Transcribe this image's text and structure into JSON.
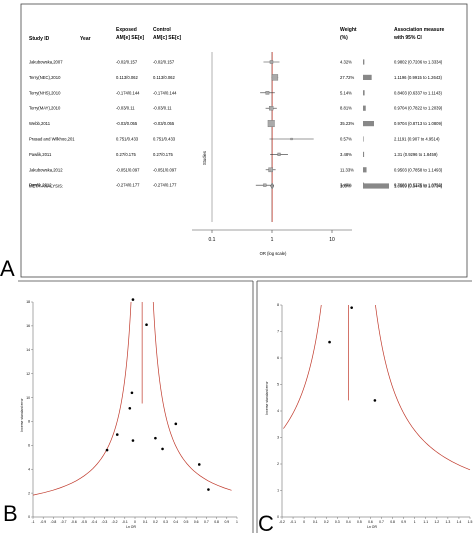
{
  "panels": {
    "a_label": "A",
    "b_label": "B",
    "c_label": "C"
  },
  "forest": {
    "col_headers": {
      "study": "Study ID",
      "year": "Year",
      "exposed_line1": "Exposed",
      "exposed_line2": "AM[e] SE[e]",
      "control_line1": "Control",
      "control_line2": "AM[c] SE[c]",
      "weight_line1": "Weight",
      "weight_line2": "(%)",
      "assoc_line1": "Association measure",
      "assoc_line2": "with 95% CI"
    },
    "studies_axis_label": "Studies",
    "x_axis_label": "OR (log scale)",
    "x_ticks": [
      {
        "value": 0.1,
        "label": "0.1"
      },
      {
        "value": 1,
        "label": "1"
      },
      {
        "value": 10,
        "label": "10"
      }
    ],
    "rows": [
      {
        "study": "Jakubowska,2007",
        "exposed": "-0.02/0.157",
        "control": "-0.02/0.157",
        "weight": "4.32%",
        "weight_value": 4.32,
        "assoc": "0.9802 (0.7206 to 1.3334)",
        "or": 0.9802,
        "lo": 0.7206,
        "hi": 1.3334
      },
      {
        "study": "Terry(NEC),2010",
        "exposed": "0.113/0.062",
        "control": "0.113/0.062",
        "weight": "27.72%",
        "weight_value": 27.72,
        "assoc": "1.1196 (0.9915 to 1.2643)",
        "or": 1.1196,
        "lo": 0.9915,
        "hi": 1.2643
      },
      {
        "study": "Terry(NHS),2010",
        "exposed": "-0.174/0.144",
        "control": "-0.174/0.144",
        "weight": "5.14%",
        "weight_value": 5.14,
        "assoc": "0.8403 (0.6337 to 1.1143)",
        "or": 0.8403,
        "lo": 0.6337,
        "hi": 1.1143
      },
      {
        "study": "Terry(MAY),2010",
        "exposed": "-0.03/0.11",
        "control": "-0.03/0.11",
        "weight": "8.81%",
        "weight_value": 8.81,
        "assoc": "0.9704 (0.7822 to 1.2039)",
        "or": 0.9704,
        "lo": 0.7822,
        "hi": 1.2039
      },
      {
        "study": "Webb,2011",
        "exposed": "-0.03/0.055",
        "control": "-0.03/0.055",
        "weight": "35.23%",
        "weight_value": 35.23,
        "assoc": "0.9704 (0.8713 to 1.0809)",
        "or": 0.9704,
        "lo": 0.8713,
        "hi": 1.0809
      },
      {
        "study": "Prasad and Wilkhoo,201",
        "exposed": "0.751/0.433",
        "control": "0.751/0.433",
        "weight": "0.57%",
        "weight_value": 0.57,
        "assoc": "2.1191 (0.907 to 4.9514)",
        "or": 2.1191,
        "lo": 0.907,
        "hi": 4.9514
      },
      {
        "study": "Pawlik,2011",
        "exposed": "0.27/0.175",
        "control": "0.27/0.175",
        "weight": "3.48%",
        "weight_value": 3.48,
        "assoc": "1.31 (0.9296 to 1.8459)",
        "or": 1.31,
        "lo": 0.9296,
        "hi": 1.8459
      },
      {
        "study": "Jakubowska,2012",
        "exposed": "-0.051/0.097",
        "control": "-0.051/0.097",
        "weight": "11.33%",
        "weight_value": 11.33,
        "assoc": "0.9503 (0.7858 to 1.1493)",
        "or": 0.9503,
        "lo": 0.7858,
        "hi": 1.1493
      },
      {
        "study": "Powlik,2012",
        "exposed": "-0.274/0.177",
        "control": "-0.274/0.177",
        "weight": "3.40%",
        "weight_value": 3.4,
        "assoc": "0.7603 (0.5375 to 1.0756)",
        "or": 0.7603,
        "lo": 0.5375,
        "hi": 1.0756
      }
    ],
    "meta": {
      "label": "META-ANALYSIS:",
      "weight": "100%",
      "weight_value": 100,
      "assoc": "1.0069 (0.9445 to 1.0734)",
      "or": 1.0069,
      "lo": 0.9445,
      "hi": 1.0734
    }
  },
  "funnel_b": {
    "x_axis_label": "Ln OR",
    "y_axis_label": "Inverse standard error",
    "x_ticks": [
      "-1",
      "-0.9",
      "-0.8",
      "-0.7",
      "-0.6",
      "-0.5",
      "-0.4",
      "-0.3",
      "-0.2",
      "-0.1",
      "0",
      "0.1",
      "0.2",
      "0.3",
      "0.4",
      "0.5",
      "0.6",
      "0.7",
      "0.8",
      "0.9",
      "1"
    ],
    "y_ticks": [
      "0",
      "2",
      "4",
      "6",
      "8",
      "10",
      "12",
      "14",
      "16",
      "18"
    ],
    "pooled_x": 0.07,
    "points": [
      {
        "x": -0.02,
        "y": 18.2
      },
      {
        "x": 0.113,
        "y": 16.1
      },
      {
        "x": -0.03,
        "y": 10.4
      },
      {
        "x": -0.051,
        "y": 9.1
      },
      {
        "x": -0.174,
        "y": 6.9
      },
      {
        "x": -0.02,
        "y": 6.4
      },
      {
        "x": -0.274,
        "y": 5.6
      },
      {
        "x": 0.27,
        "y": 5.7
      },
      {
        "x": 0.2,
        "y": 6.6
      },
      {
        "x": 0.4,
        "y": 7.8
      },
      {
        "x": 0.63,
        "y": 4.4
      },
      {
        "x": 0.72,
        "y": 2.3
      }
    ]
  },
  "funnel_c": {
    "x_axis_label": "Ln OR",
    "y_axis_label": "Inverse standard error",
    "x_ticks": [
      "-0.2",
      "-0.1",
      "0",
      "0.1",
      "0.2",
      "0.3",
      "0.4",
      "0.5",
      "0.6",
      "0.7",
      "0.8",
      "0.9",
      "1",
      "1.1",
      "1.2",
      "1.3",
      "1.4",
      "1.5"
    ],
    "y_ticks": [
      "0",
      "1",
      "2",
      "3",
      "4",
      "5",
      "6",
      "7",
      "8"
    ],
    "pooled_x": 0.4,
    "points": [
      {
        "x": 0.23,
        "y": 6.6
      },
      {
        "x": 0.43,
        "y": 7.9
      },
      {
        "x": 0.64,
        "y": 4.4
      }
    ]
  },
  "chart_data": [
    {
      "type": "scatter",
      "title": "",
      "xlabel": "OR (log scale)",
      "ylabel": "Studies",
      "x_scale": "log",
      "xlim": [
        0.1,
        10
      ],
      "categories": [
        "Jakubowska,2007",
        "Terry(NEC),2010",
        "Terry(NHS),2010",
        "Terry(MAY),2010",
        "Webb,2011",
        "Prasad and Wilkhoo,201",
        "Pawlik,2011",
        "Jakubowska,2012",
        "Powlik,2012",
        "META-ANALYSIS:"
      ],
      "values": [
        0.9802,
        1.1196,
        0.8403,
        0.9704,
        0.9704,
        2.1191,
        1.31,
        0.9503,
        0.7603,
        1.0069
      ],
      "ci_lower": [
        0.7206,
        0.9915,
        0.6337,
        0.7822,
        0.8713,
        0.907,
        0.9296,
        0.7858,
        0.5375,
        0.9445
      ],
      "ci_upper": [
        1.3334,
        1.2643,
        1.1143,
        1.2039,
        1.0809,
        4.9514,
        1.8459,
        1.1493,
        1.0756,
        1.0734
      ],
      "weights": [
        4.32,
        27.72,
        5.14,
        8.81,
        35.23,
        0.57,
        3.48,
        11.33,
        3.4,
        100
      ]
    },
    {
      "type": "scatter",
      "title": "",
      "xlabel": "Ln OR",
      "ylabel": "Inverse standard error",
      "xlim": [
        -1,
        1
      ],
      "ylim": [
        0,
        18
      ],
      "x": [
        -0.02,
        0.113,
        -0.03,
        -0.051,
        -0.174,
        -0.02,
        -0.274,
        0.27,
        0.2,
        0.4,
        0.63,
        0.72
      ],
      "y": [
        18.2,
        16.1,
        10.4,
        9.1,
        6.9,
        6.4,
        5.6,
        5.7,
        6.6,
        7.8,
        4.4,
        2.3
      ]
    },
    {
      "type": "scatter",
      "title": "",
      "xlabel": "Ln OR",
      "ylabel": "Inverse standard error",
      "xlim": [
        -0.2,
        1.5
      ],
      "ylim": [
        0,
        8
      ],
      "x": [
        0.23,
        0.43,
        0.64
      ],
      "y": [
        6.6,
        7.9,
        4.4
      ]
    }
  ]
}
